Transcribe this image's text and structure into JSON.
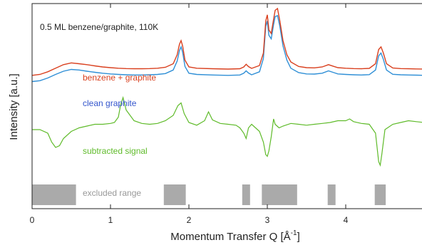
{
  "chart_data": {
    "type": "line",
    "title": "0.5 ML benzene/graphite, 110K",
    "xlabel": "Momentum Transfer Q [Å",
    "xlabel_sup": "-1",
    "xlabel_end": "]",
    "ylabel": "Intensity [a.u.]",
    "xlim": [
      0,
      5
    ],
    "ylim": [
      0,
      1
    ],
    "xticks": [
      0,
      1,
      2,
      3,
      4
    ],
    "xtick_labels": [
      "0",
      "1",
      "2",
      "3",
      "4"
    ],
    "grid": false,
    "colors": {
      "benzene_graphite": "#d9401f",
      "clean_graphite": "#2f8fd6",
      "subtracted": "#5fbb2a",
      "excluded": "#aaaaaa"
    },
    "series": [
      {
        "name": "benzene + graphite",
        "color": "#d9401f",
        "x": [
          0.0,
          0.1,
          0.2,
          0.3,
          0.4,
          0.5,
          0.6,
          0.7,
          0.8,
          0.9,
          1.0,
          1.1,
          1.2,
          1.3,
          1.4,
          1.5,
          1.6,
          1.7,
          1.8,
          1.85,
          1.88,
          1.9,
          1.92,
          1.95,
          2.0,
          2.1,
          2.3,
          2.5,
          2.65,
          2.7,
          2.73,
          2.76,
          2.8,
          2.9,
          2.95,
          2.98,
          3.0,
          3.02,
          3.05,
          3.08,
          3.1,
          3.13,
          3.16,
          3.2,
          3.25,
          3.3,
          3.4,
          3.5,
          3.6,
          3.7,
          3.78,
          3.85,
          3.9,
          4.0,
          4.1,
          4.2,
          4.3,
          4.38,
          4.42,
          4.45,
          4.48,
          4.52,
          4.6,
          4.7,
          4.8,
          4.9,
          5.0
        ],
        "y": [
          0.625,
          0.63,
          0.645,
          0.665,
          0.685,
          0.695,
          0.69,
          0.685,
          0.678,
          0.672,
          0.668,
          0.665,
          0.663,
          0.662,
          0.662,
          0.663,
          0.665,
          0.67,
          0.69,
          0.74,
          0.8,
          0.82,
          0.79,
          0.71,
          0.672,
          0.665,
          0.662,
          0.66,
          0.662,
          0.672,
          0.687,
          0.674,
          0.664,
          0.68,
          0.75,
          0.93,
          0.965,
          0.88,
          0.86,
          0.94,
          0.99,
          1.0,
          0.93,
          0.82,
          0.74,
          0.7,
          0.675,
          0.668,
          0.667,
          0.672,
          0.685,
          0.675,
          0.668,
          0.665,
          0.663,
          0.662,
          0.664,
          0.69,
          0.77,
          0.785,
          0.75,
          0.69,
          0.666,
          0.663,
          0.662,
          0.661,
          0.66
        ]
      },
      {
        "name": "clean graphite",
        "color": "#2f8fd6",
        "x": [
          0.0,
          0.1,
          0.2,
          0.3,
          0.4,
          0.5,
          0.6,
          0.7,
          0.8,
          0.9,
          1.0,
          1.1,
          1.2,
          1.3,
          1.4,
          1.5,
          1.6,
          1.7,
          1.8,
          1.85,
          1.88,
          1.9,
          1.92,
          1.95,
          2.0,
          2.1,
          2.3,
          2.5,
          2.65,
          2.7,
          2.73,
          2.76,
          2.8,
          2.9,
          2.95,
          2.98,
          3.0,
          3.02,
          3.05,
          3.08,
          3.1,
          3.13,
          3.16,
          3.2,
          3.25,
          3.3,
          3.4,
          3.5,
          3.6,
          3.7,
          3.78,
          3.85,
          3.9,
          4.0,
          4.1,
          4.2,
          4.3,
          4.38,
          4.42,
          4.45,
          4.48,
          4.52,
          4.6,
          4.7,
          4.8,
          4.9,
          5.0
        ],
        "y": [
          0.59,
          0.595,
          0.61,
          0.63,
          0.648,
          0.658,
          0.655,
          0.648,
          0.642,
          0.637,
          0.633,
          0.63,
          0.628,
          0.627,
          0.627,
          0.628,
          0.63,
          0.635,
          0.655,
          0.705,
          0.765,
          0.785,
          0.755,
          0.675,
          0.637,
          0.63,
          0.627,
          0.625,
          0.627,
          0.637,
          0.65,
          0.638,
          0.628,
          0.645,
          0.72,
          0.9,
          0.93,
          0.85,
          0.83,
          0.91,
          0.955,
          0.96,
          0.9,
          0.79,
          0.71,
          0.665,
          0.64,
          0.633,
          0.632,
          0.637,
          0.65,
          0.64,
          0.633,
          0.63,
          0.628,
          0.627,
          0.629,
          0.655,
          0.735,
          0.75,
          0.715,
          0.655,
          0.631,
          0.628,
          0.627,
          0.626,
          0.625
        ]
      },
      {
        "name": "subtracted signal",
        "color": "#5fbb2a",
        "x": [
          0.0,
          0.1,
          0.2,
          0.25,
          0.3,
          0.35,
          0.4,
          0.5,
          0.6,
          0.7,
          0.8,
          0.9,
          1.0,
          1.05,
          1.1,
          1.13,
          1.16,
          1.2,
          1.3,
          1.4,
          1.5,
          1.6,
          1.7,
          1.8,
          1.86,
          1.9,
          1.94,
          2.0,
          2.1,
          2.2,
          2.25,
          2.3,
          2.4,
          2.5,
          2.6,
          2.65,
          2.7,
          2.73,
          2.76,
          2.8,
          2.85,
          2.9,
          2.95,
          2.98,
          3.0,
          3.02,
          3.05,
          3.08,
          3.1,
          3.15,
          3.2,
          3.3,
          3.4,
          3.5,
          3.6,
          3.7,
          3.8,
          3.9,
          4.0,
          4.05,
          4.1,
          4.2,
          4.3,
          4.38,
          4.42,
          4.44,
          4.46,
          4.5,
          4.6,
          4.7,
          4.8,
          4.9,
          5.0
        ],
        "y": [
          0.32,
          0.32,
          0.3,
          0.25,
          0.22,
          0.23,
          0.27,
          0.31,
          0.33,
          0.34,
          0.35,
          0.35,
          0.355,
          0.36,
          0.39,
          0.46,
          0.5,
          0.43,
          0.37,
          0.355,
          0.35,
          0.355,
          0.37,
          0.4,
          0.455,
          0.47,
          0.41,
          0.36,
          0.345,
          0.37,
          0.42,
          0.375,
          0.355,
          0.35,
          0.345,
          0.33,
          0.3,
          0.27,
          0.33,
          0.35,
          0.33,
          0.31,
          0.25,
          0.18,
          0.17,
          0.2,
          0.28,
          0.38,
          0.35,
          0.33,
          0.34,
          0.355,
          0.35,
          0.345,
          0.35,
          0.355,
          0.36,
          0.37,
          0.37,
          0.38,
          0.365,
          0.355,
          0.35,
          0.3,
          0.14,
          0.12,
          0.18,
          0.32,
          0.35,
          0.36,
          0.37,
          0.365,
          0.36
        ]
      }
    ],
    "excluded_ranges": [
      [
        0.0,
        0.56
      ],
      [
        1.68,
        1.96
      ],
      [
        2.68,
        2.78
      ],
      [
        2.93,
        3.38
      ],
      [
        3.77,
        3.87
      ],
      [
        4.37,
        4.51
      ]
    ],
    "annotations": {
      "header": "0.5 ML benzene/graphite, 110K",
      "benzene_label": "benzene + graphite",
      "clean_label": "clean graphite",
      "subtracted_label": "subtracted signal",
      "excluded_label": "excluded range"
    }
  }
}
